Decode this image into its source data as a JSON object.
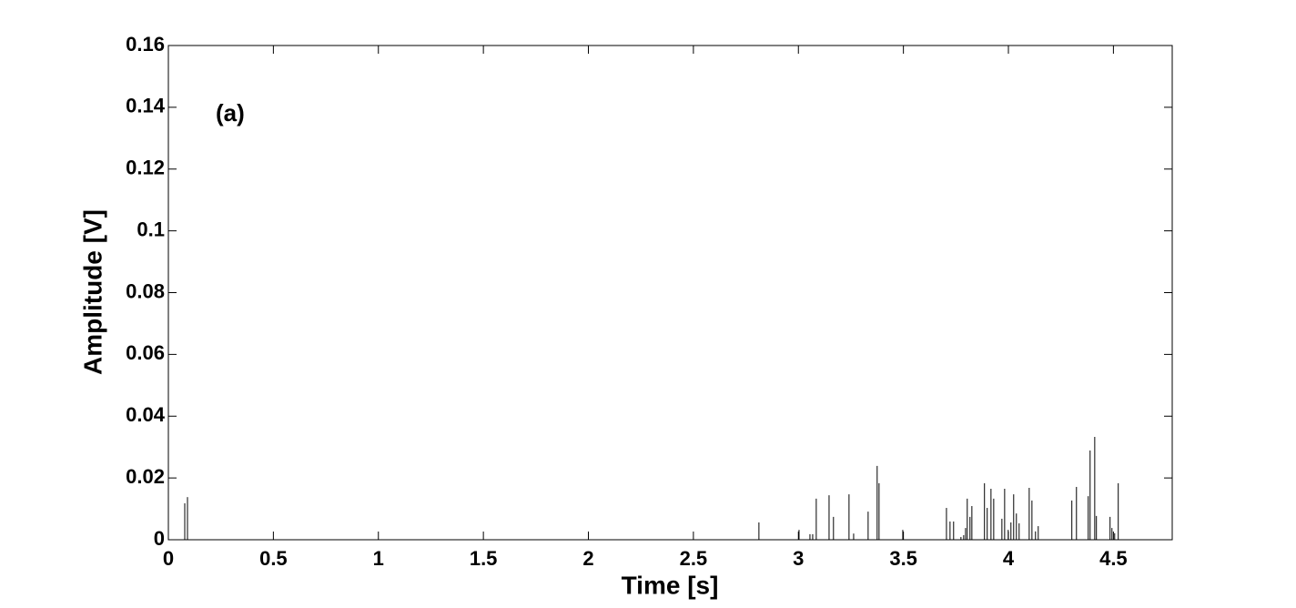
{
  "chart_data": {
    "type": "stem",
    "annotation": "(a)",
    "x_label": "Time [s]",
    "y_label": "Amplitude [V]",
    "color": "#000000",
    "x": [
      0.078,
      0.091,
      2.812,
      3.003,
      3.055,
      3.068,
      3.085,
      3.146,
      3.167,
      3.241,
      3.263,
      3.332,
      3.375,
      3.384,
      3.497,
      3.705,
      3.722,
      3.739,
      3.774,
      3.787,
      3.796,
      3.804,
      3.817,
      3.826,
      3.886,
      3.899,
      3.917,
      3.93,
      3.969,
      3.982,
      3.999,
      4.012,
      4.025,
      4.038,
      4.051,
      4.099,
      4.112,
      4.129,
      4.142,
      4.302,
      4.324,
      4.38,
      4.389,
      4.411,
      4.419,
      4.484,
      4.493,
      4.506,
      4.523
    ],
    "values": [
      0.0118,
      0.0138,
      0.0056,
      0.0032,
      0.0018,
      0.0018,
      0.0133,
      0.0144,
      0.0074,
      0.0147,
      0.002,
      0.0091,
      0.0239,
      0.0183,
      0.0032,
      0.0103,
      0.0059,
      0.0059,
      0.0009,
      0.0015,
      0.0038,
      0.0133,
      0.0074,
      0.0109,
      0.0183,
      0.0103,
      0.0165,
      0.0133,
      0.0068,
      0.0165,
      0.0032,
      0.0056,
      0.0147,
      0.0085,
      0.0053,
      0.0168,
      0.0127,
      0.0027,
      0.0044,
      0.0127,
      0.0171,
      0.0141,
      0.0289,
      0.0333,
      0.0077,
      0.0074,
      0.0038,
      0.0021,
      0.0183
    ],
    "xlim": [
      0,
      4.78
    ],
    "ylim": [
      0,
      0.16
    ],
    "xticks": [
      0,
      0.5,
      1,
      1.5,
      2,
      2.5,
      3,
      3.5,
      4,
      4.5
    ],
    "yticks": [
      0,
      0.02,
      0.04,
      0.06,
      0.08,
      0.1,
      0.12,
      0.14,
      0.16
    ]
  }
}
